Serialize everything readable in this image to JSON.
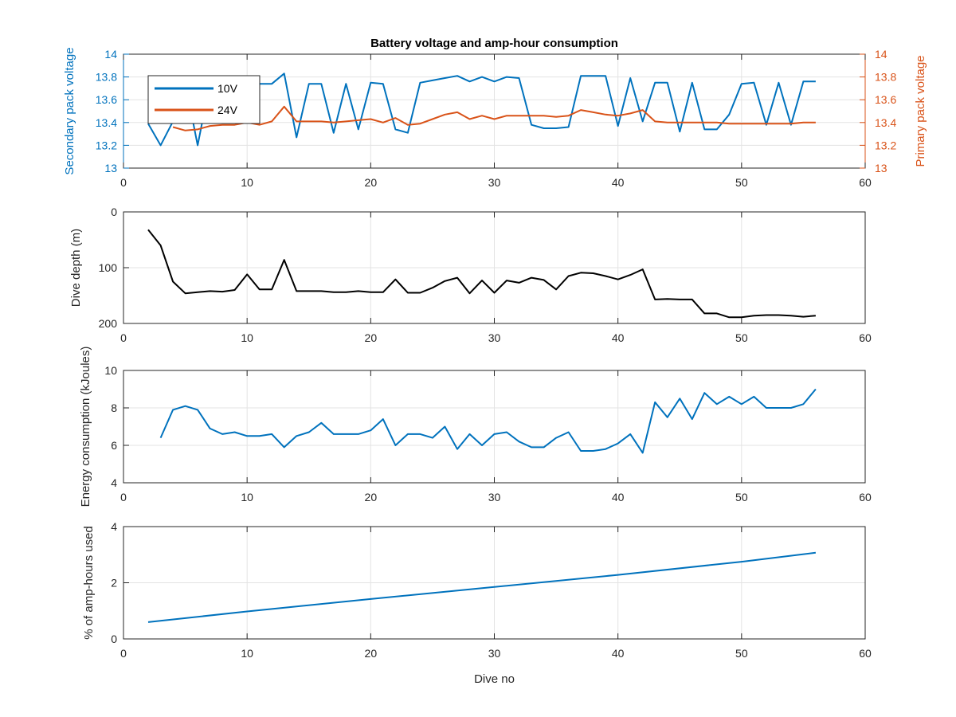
{
  "figure": {
    "title": "Battery voltage and amp-hour consumption"
  },
  "colors": {
    "blue": "#0072BD",
    "orange": "#D95319",
    "black": "#000000",
    "grid": "#E3E3E3"
  },
  "chart_data": [
    {
      "type": "line",
      "title": "Battery voltage and amp-hour consumption",
      "xlabel": "",
      "xlim": [
        0,
        60
      ],
      "xticks": [
        0,
        10,
        20,
        30,
        40,
        50,
        60
      ],
      "ylabel_left": "Secondary pack voltage",
      "ylabel_right": "Primary pack voltage",
      "ylim": [
        13,
        14
      ],
      "yticks": [
        13,
        13.2,
        13.4,
        13.6,
        13.8,
        14
      ],
      "yticklabels": [
        "13",
        "13.2",
        "13.4",
        "13.6",
        "13.8",
        "14"
      ],
      "grid": true,
      "legend": {
        "position": "top-left",
        "entries": [
          "10V",
          "24V"
        ]
      },
      "series": [
        {
          "name": "10V",
          "axis": "left",
          "color": "#0072BD",
          "x": [
            2,
            3,
            4,
            5,
            6,
            7,
            8,
            9,
            10,
            11,
            12,
            13,
            14,
            15,
            16,
            17,
            18,
            19,
            20,
            21,
            22,
            23,
            24,
            25,
            26,
            27,
            28,
            29,
            30,
            31,
            32,
            33,
            34,
            35,
            36,
            37,
            38,
            39,
            40,
            41,
            42,
            43,
            44,
            45,
            46,
            47,
            48,
            49,
            50,
            51,
            52,
            53,
            54,
            55,
            56
          ],
          "y": [
            13.39,
            13.2,
            13.41,
            13.75,
            13.2,
            13.75,
            13.75,
            13.75,
            13.76,
            13.74,
            13.74,
            13.83,
            13.27,
            13.74,
            13.74,
            13.31,
            13.74,
            13.34,
            13.75,
            13.74,
            13.34,
            13.31,
            13.75,
            13.77,
            13.79,
            13.81,
            13.76,
            13.8,
            13.76,
            13.8,
            13.79,
            13.38,
            13.35,
            13.35,
            13.36,
            13.81,
            13.81,
            13.81,
            13.37,
            13.79,
            13.41,
            13.75,
            13.75,
            13.32,
            13.75,
            13.34,
            13.34,
            13.47,
            13.74,
            13.75,
            13.38,
            13.75,
            13.38,
            13.76,
            13.76
          ]
        },
        {
          "name": "24V",
          "axis": "right",
          "color": "#D95319",
          "x": [
            4,
            5,
            6,
            7,
            8,
            9,
            10,
            11,
            12,
            13,
            14,
            15,
            16,
            17,
            18,
            19,
            20,
            21,
            22,
            23,
            24,
            25,
            26,
            27,
            28,
            29,
            30,
            31,
            32,
            33,
            34,
            35,
            36,
            37,
            38,
            39,
            40,
            41,
            42,
            43,
            44,
            45,
            46,
            47,
            48,
            49,
            50,
            51,
            52,
            53,
            54,
            55,
            56
          ],
          "y": [
            13.36,
            13.33,
            13.34,
            13.37,
            13.38,
            13.38,
            13.4,
            13.38,
            13.41,
            13.54,
            13.41,
            13.41,
            13.41,
            13.4,
            13.41,
            13.42,
            13.43,
            13.4,
            13.44,
            13.38,
            13.39,
            13.43,
            13.47,
            13.49,
            13.43,
            13.46,
            13.43,
            13.46,
            13.46,
            13.46,
            13.46,
            13.45,
            13.46,
            13.51,
            13.49,
            13.47,
            13.46,
            13.48,
            13.51,
            13.41,
            13.4,
            13.4,
            13.4,
            13.4,
            13.4,
            13.39,
            13.39,
            13.39,
            13.39,
            13.39,
            13.39,
            13.4,
            13.4
          ]
        }
      ]
    },
    {
      "type": "line",
      "title": "",
      "xlabel": "",
      "ylabel": "Dive depth (m)",
      "xlim": [
        0,
        60
      ],
      "xticks": [
        0,
        10,
        20,
        30,
        40,
        50,
        60
      ],
      "ylim": [
        200,
        0
      ],
      "reversed_y": true,
      "yticks": [
        0,
        100,
        200
      ],
      "yticklabels": [
        "0",
        "100",
        "200"
      ],
      "grid": true,
      "series": [
        {
          "color": "#000000",
          "x": [
            2,
            3,
            4,
            5,
            6,
            7,
            8,
            9,
            10,
            11,
            12,
            13,
            14,
            15,
            16,
            17,
            18,
            19,
            20,
            21,
            22,
            23,
            24,
            25,
            26,
            27,
            28,
            29,
            30,
            31,
            32,
            33,
            34,
            35,
            36,
            37,
            38,
            39,
            40,
            41,
            42,
            43,
            44,
            45,
            46,
            47,
            48,
            49,
            50,
            51,
            52,
            53,
            54,
            55,
            56
          ],
          "y": [
            32,
            60,
            125,
            146,
            144,
            142,
            143,
            140,
            112,
            139,
            139,
            86,
            142,
            142,
            142,
            144,
            144,
            142,
            144,
            144,
            121,
            145,
            145,
            136,
            124,
            118,
            146,
            123,
            145,
            123,
            127,
            118,
            122,
            139,
            115,
            109,
            110,
            115,
            121,
            113,
            103,
            157,
            156,
            157,
            157,
            182,
            182,
            189,
            189,
            186,
            185,
            185,
            186,
            188,
            186
          ]
        }
      ]
    },
    {
      "type": "line",
      "title": "",
      "xlabel": "",
      "ylabel": "Energy consumption (kJoules)",
      "xlim": [
        0,
        60
      ],
      "xticks": [
        0,
        10,
        20,
        30,
        40,
        50,
        60
      ],
      "ylim": [
        4,
        10
      ],
      "yticks": [
        4,
        6,
        8,
        10
      ],
      "yticklabels": [
        "4",
        "6",
        "8",
        "10"
      ],
      "grid": true,
      "series": [
        {
          "color": "#0072BD",
          "x": [
            3,
            4,
            5,
            6,
            7,
            8,
            9,
            10,
            11,
            12,
            13,
            14,
            15,
            16,
            17,
            18,
            19,
            20,
            21,
            22,
            23,
            24,
            25,
            26,
            27,
            28,
            29,
            30,
            31,
            32,
            33,
            34,
            35,
            36,
            37,
            38,
            39,
            40,
            41,
            42,
            43,
            44,
            45,
            46,
            47,
            48,
            49,
            50,
            51,
            52,
            53,
            54,
            55,
            56
          ],
          "y": [
            6.4,
            7.9,
            8.1,
            7.9,
            6.9,
            6.6,
            6.7,
            6.5,
            6.5,
            6.6,
            5.9,
            6.5,
            6.7,
            7.2,
            6.6,
            6.6,
            6.6,
            6.8,
            7.4,
            6.0,
            6.6,
            6.6,
            6.4,
            7.0,
            5.8,
            6.6,
            6.0,
            6.6,
            6.7,
            6.2,
            5.9,
            5.9,
            6.4,
            6.7,
            5.7,
            5.7,
            5.8,
            6.1,
            6.6,
            5.6,
            8.3,
            7.5,
            8.5,
            7.4,
            8.8,
            8.2,
            8.6,
            8.2,
            8.6,
            8.0,
            8.0,
            8.0,
            8.2,
            9.0
          ]
        }
      ]
    },
    {
      "type": "line",
      "title": "",
      "xlabel": "Dive no",
      "ylabel": "% of amp-hours used",
      "xlim": [
        0,
        60
      ],
      "xticks": [
        0,
        10,
        20,
        30,
        40,
        50,
        60
      ],
      "ylim": [
        0,
        4
      ],
      "yticks": [
        0,
        2,
        4
      ],
      "yticklabels": [
        "0",
        "2",
        "4"
      ],
      "grid": true,
      "series": [
        {
          "color": "#0072BD",
          "x": [
            2,
            10,
            20,
            30,
            40,
            50,
            56
          ],
          "y": [
            0.6,
            0.98,
            1.42,
            1.85,
            2.28,
            2.75,
            3.07
          ]
        }
      ]
    }
  ]
}
